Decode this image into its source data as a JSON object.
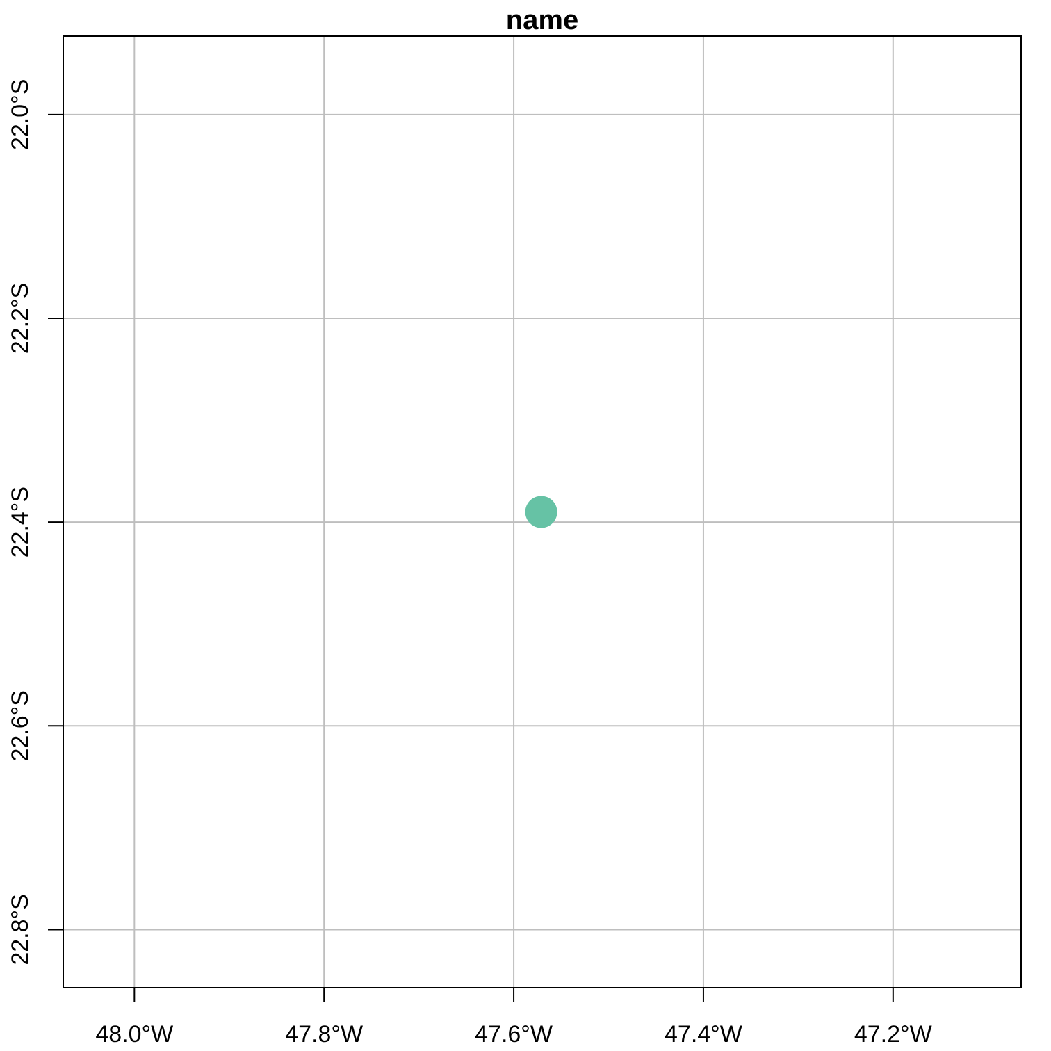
{
  "chart_data": {
    "type": "scatter",
    "title": "name",
    "xlabel": "",
    "ylabel": "",
    "x_ticks": [
      {
        "value": -48.0,
        "label": "48.0°W"
      },
      {
        "value": -47.8,
        "label": "47.8°W"
      },
      {
        "value": -47.6,
        "label": "47.6°W"
      },
      {
        "value": -47.4,
        "label": "47.4°W"
      },
      {
        "value": -47.2,
        "label": "47.2°W"
      }
    ],
    "y_ticks": [
      {
        "value": -22.0,
        "label": "22.0°S"
      },
      {
        "value": -22.2,
        "label": "22.2°S"
      },
      {
        "value": -22.4,
        "label": "22.4°S"
      },
      {
        "value": -22.6,
        "label": "22.6°S"
      },
      {
        "value": -22.8,
        "label": "22.8°S"
      }
    ],
    "xlim": [
      -48.075,
      -47.065
    ],
    "ylim": [
      -22.857,
      -21.923
    ],
    "grid": true,
    "points": [
      {
        "x": -47.571,
        "y": -22.39,
        "color": "#66c2a5"
      }
    ]
  }
}
